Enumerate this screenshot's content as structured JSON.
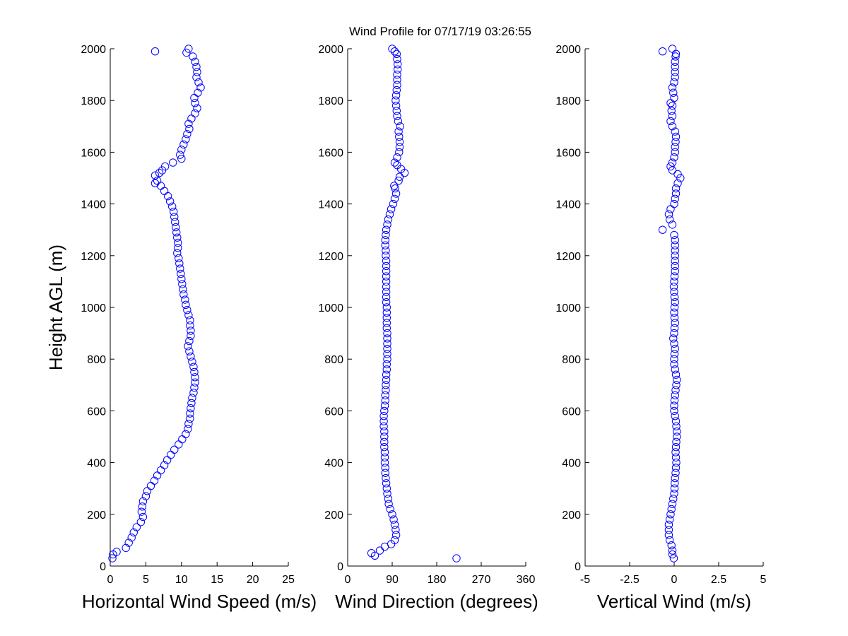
{
  "figure": {
    "title": "Wind Profile for  07/17/19 03:26:55",
    "marker_color": "#0000ff"
  },
  "chart_data": [
    {
      "type": "scatter",
      "title": "Wind Profile for  07/17/19 03:26:55",
      "xlabel": "Horizontal Wind Speed (m/s)",
      "ylabel": "Height AGL (m)",
      "xlim": [
        0,
        25
      ],
      "ylim": [
        0,
        2000
      ],
      "xticks": [
        "0",
        "5",
        "10",
        "15",
        "20",
        "25"
      ],
      "xtick_values": [
        0,
        5,
        10,
        15,
        20,
        25
      ],
      "yticks": [
        "0",
        "200",
        "400",
        "600",
        "800",
        "1000",
        "1200",
        "1400",
        "1600",
        "1800",
        "2000"
      ],
      "ytick_values": [
        0,
        200,
        400,
        600,
        800,
        1000,
        1200,
        1400,
        1600,
        1800,
        2000
      ],
      "grid": false,
      "points": [
        [
          0.3,
          30
        ],
        [
          0.4,
          45
        ],
        [
          0.9,
          55
        ],
        [
          2.2,
          70
        ],
        [
          2.6,
          90
        ],
        [
          3.0,
          110
        ],
        [
          3.3,
          130
        ],
        [
          3.7,
          150
        ],
        [
          4.3,
          170
        ],
        [
          4.6,
          190
        ],
        [
          4.4,
          210
        ],
        [
          4.5,
          230
        ],
        [
          4.6,
          250
        ],
        [
          5.0,
          270
        ],
        [
          5.2,
          290
        ],
        [
          5.7,
          310
        ],
        [
          6.2,
          330
        ],
        [
          6.6,
          350
        ],
        [
          7.1,
          370
        ],
        [
          7.6,
          390
        ],
        [
          8.0,
          410
        ],
        [
          8.5,
          430
        ],
        [
          9.0,
          450
        ],
        [
          9.6,
          470
        ],
        [
          10.1,
          490
        ],
        [
          10.6,
          510
        ],
        [
          10.9,
          530
        ],
        [
          11.0,
          550
        ],
        [
          11.2,
          570
        ],
        [
          11.2,
          590
        ],
        [
          11.3,
          610
        ],
        [
          11.4,
          630
        ],
        [
          11.5,
          650
        ],
        [
          11.7,
          670
        ],
        [
          11.8,
          690
        ],
        [
          11.9,
          710
        ],
        [
          11.9,
          730
        ],
        [
          11.8,
          750
        ],
        [
          11.7,
          770
        ],
        [
          11.5,
          790
        ],
        [
          11.3,
          810
        ],
        [
          11.1,
          830
        ],
        [
          10.9,
          850
        ],
        [
          11.1,
          870
        ],
        [
          11.3,
          890
        ],
        [
          11.3,
          910
        ],
        [
          11.2,
          930
        ],
        [
          11.2,
          950
        ],
        [
          11.0,
          970
        ],
        [
          10.8,
          990
        ],
        [
          10.6,
          1010
        ],
        [
          10.5,
          1030
        ],
        [
          10.3,
          1050
        ],
        [
          10.2,
          1070
        ],
        [
          10.1,
          1090
        ],
        [
          10.0,
          1110
        ],
        [
          9.9,
          1130
        ],
        [
          9.8,
          1150
        ],
        [
          9.7,
          1170
        ],
        [
          9.6,
          1190
        ],
        [
          9.4,
          1210
        ],
        [
          9.5,
          1230
        ],
        [
          9.5,
          1250
        ],
        [
          9.4,
          1270
        ],
        [
          9.3,
          1290
        ],
        [
          9.2,
          1310
        ],
        [
          9.1,
          1330
        ],
        [
          9.0,
          1350
        ],
        [
          8.9,
          1370
        ],
        [
          8.7,
          1390
        ],
        [
          8.4,
          1410
        ],
        [
          8.1,
          1430
        ],
        [
          7.6,
          1450
        ],
        [
          7.1,
          1470
        ],
        [
          6.3,
          1480
        ],
        [
          6.6,
          1490
        ],
        [
          6.3,
          1510
        ],
        [
          6.9,
          1520
        ],
        [
          7.3,
          1530
        ],
        [
          7.7,
          1545
        ],
        [
          8.8,
          1560
        ],
        [
          10.0,
          1575
        ],
        [
          9.8,
          1590
        ],
        [
          10.0,
          1610
        ],
        [
          10.3,
          1630
        ],
        [
          10.6,
          1650
        ],
        [
          10.8,
          1670
        ],
        [
          11.1,
          1690
        ],
        [
          11.0,
          1710
        ],
        [
          11.4,
          1730
        ],
        [
          11.9,
          1750
        ],
        [
          12.2,
          1770
        ],
        [
          11.9,
          1790
        ],
        [
          11.8,
          1810
        ],
        [
          12.3,
          1830
        ],
        [
          12.7,
          1850
        ],
        [
          12.4,
          1870
        ],
        [
          12.1,
          1890
        ],
        [
          12.2,
          1910
        ],
        [
          12.1,
          1930
        ],
        [
          11.9,
          1950
        ],
        [
          11.6,
          1970
        ],
        [
          10.7,
          1985
        ],
        [
          6.3,
          1990
        ],
        [
          11.0,
          2000
        ]
      ]
    },
    {
      "type": "scatter",
      "xlabel": "Wind Direction (degrees)",
      "ylabel": "",
      "xlim": [
        0,
        360
      ],
      "ylim": [
        0,
        2000
      ],
      "xticks": [
        "0",
        "90",
        "180",
        "270",
        "360"
      ],
      "xtick_values": [
        0,
        90,
        180,
        270,
        360
      ],
      "yticks": [
        "0",
        "200",
        "400",
        "600",
        "800",
        "1000",
        "1200",
        "1400",
        "1600",
        "1800",
        "2000"
      ],
      "ytick_values": [
        0,
        200,
        400,
        600,
        800,
        1000,
        1200,
        1400,
        1600,
        1800,
        2000
      ],
      "grid": false,
      "points": [
        [
          220,
          30
        ],
        [
          55,
          40
        ],
        [
          48,
          50
        ],
        [
          65,
          60
        ],
        [
          75,
          75
        ],
        [
          88,
          85
        ],
        [
          95,
          100
        ],
        [
          98,
          120
        ],
        [
          97,
          140
        ],
        [
          95,
          160
        ],
        [
          93,
          180
        ],
        [
          90,
          200
        ],
        [
          86,
          220
        ],
        [
          83,
          240
        ],
        [
          82,
          260
        ],
        [
          80,
          280
        ],
        [
          79,
          300
        ],
        [
          78,
          320
        ],
        [
          77,
          340
        ],
        [
          76,
          360
        ],
        [
          76,
          380
        ],
        [
          75,
          400
        ],
        [
          75,
          420
        ],
        [
          75,
          440
        ],
        [
          74,
          460
        ],
        [
          74,
          480
        ],
        [
          74,
          500
        ],
        [
          74,
          520
        ],
        [
          73,
          540
        ],
        [
          73,
          560
        ],
        [
          73,
          580
        ],
        [
          74,
          600
        ],
        [
          75,
          620
        ],
        [
          76,
          640
        ],
        [
          76,
          660
        ],
        [
          77,
          680
        ],
        [
          77,
          700
        ],
        [
          78,
          720
        ],
        [
          78,
          740
        ],
        [
          79,
          760
        ],
        [
          79,
          780
        ],
        [
          80,
          800
        ],
        [
          80,
          820
        ],
        [
          80,
          840
        ],
        [
          80,
          860
        ],
        [
          80,
          880
        ],
        [
          80,
          900
        ],
        [
          79,
          920
        ],
        [
          79,
          940
        ],
        [
          79,
          960
        ],
        [
          79,
          980
        ],
        [
          79,
          1000
        ],
        [
          78,
          1020
        ],
        [
          78,
          1040
        ],
        [
          78,
          1060
        ],
        [
          78,
          1080
        ],
        [
          78,
          1100
        ],
        [
          78,
          1120
        ],
        [
          78,
          1140
        ],
        [
          78,
          1160
        ],
        [
          78,
          1180
        ],
        [
          77,
          1200
        ],
        [
          77,
          1220
        ],
        [
          76,
          1240
        ],
        [
          76,
          1260
        ],
        [
          77,
          1280
        ],
        [
          78,
          1300
        ],
        [
          80,
          1320
        ],
        [
          82,
          1340
        ],
        [
          85,
          1360
        ],
        [
          88,
          1380
        ],
        [
          92,
          1400
        ],
        [
          95,
          1420
        ],
        [
          98,
          1440
        ],
        [
          96,
          1460
        ],
        [
          94,
          1470
        ],
        [
          103,
          1490
        ],
        [
          105,
          1505
        ],
        [
          115,
          1520
        ],
        [
          108,
          1535
        ],
        [
          100,
          1550
        ],
        [
          95,
          1560
        ],
        [
          100,
          1580
        ],
        [
          104,
          1600
        ],
        [
          105,
          1620
        ],
        [
          105,
          1640
        ],
        [
          104,
          1660
        ],
        [
          103,
          1680
        ],
        [
          106,
          1700
        ],
        [
          102,
          1720
        ],
        [
          100,
          1740
        ],
        [
          99,
          1760
        ],
        [
          98,
          1780
        ],
        [
          97,
          1800
        ],
        [
          98,
          1820
        ],
        [
          99,
          1840
        ],
        [
          100,
          1860
        ],
        [
          100,
          1880
        ],
        [
          100,
          1900
        ],
        [
          101,
          1920
        ],
        [
          101,
          1940
        ],
        [
          100,
          1960
        ],
        [
          99,
          1980
        ],
        [
          95,
          1990
        ],
        [
          90,
          2000
        ]
      ]
    },
    {
      "type": "scatter",
      "xlabel": "Vertical Wind (m/s)",
      "ylabel": "",
      "xlim": [
        -5,
        5
      ],
      "ylim": [
        0,
        2000
      ],
      "xticks": [
        "-5",
        "-2.5",
        "0",
        "2.5",
        "5"
      ],
      "xtick_values": [
        -5,
        -2.5,
        0,
        2.5,
        5
      ],
      "yticks": [
        "0",
        "200",
        "400",
        "600",
        "800",
        "1000",
        "1200",
        "1400",
        "1600",
        "1800",
        "2000"
      ],
      "ytick_values": [
        0,
        200,
        400,
        600,
        800,
        1000,
        1200,
        1400,
        1600,
        1800,
        2000
      ],
      "grid": false,
      "points": [
        [
          -0.02,
          30
        ],
        [
          -0.1,
          45
        ],
        [
          -0.1,
          60
        ],
        [
          -0.15,
          80
        ],
        [
          -0.25,
          100
        ],
        [
          -0.3,
          120
        ],
        [
          -0.3,
          140
        ],
        [
          -0.3,
          160
        ],
        [
          -0.25,
          180
        ],
        [
          -0.2,
          200
        ],
        [
          -0.15,
          220
        ],
        [
          -0.1,
          240
        ],
        [
          -0.05,
          260
        ],
        [
          0.0,
          280
        ],
        [
          0.02,
          300
        ],
        [
          0.03,
          320
        ],
        [
          0.05,
          340
        ],
        [
          0.08,
          360
        ],
        [
          0.1,
          380
        ],
        [
          0.12,
          400
        ],
        [
          0.1,
          420
        ],
        [
          0.08,
          440
        ],
        [
          0.1,
          460
        ],
        [
          0.12,
          480
        ],
        [
          0.15,
          500
        ],
        [
          0.15,
          520
        ],
        [
          0.12,
          540
        ],
        [
          0.1,
          560
        ],
        [
          0.05,
          580
        ],
        [
          0.0,
          600
        ],
        [
          0.0,
          620
        ],
        [
          0.02,
          640
        ],
        [
          0.05,
          660
        ],
        [
          0.08,
          680
        ],
        [
          0.12,
          700
        ],
        [
          0.15,
          720
        ],
        [
          0.1,
          740
        ],
        [
          0.05,
          760
        ],
        [
          0.0,
          780
        ],
        [
          0.0,
          800
        ],
        [
          0.02,
          820
        ],
        [
          0.05,
          840
        ],
        [
          0.0,
          860
        ],
        [
          -0.05,
          880
        ],
        [
          0.0,
          900
        ],
        [
          0.02,
          920
        ],
        [
          0.05,
          940
        ],
        [
          0.02,
          960
        ],
        [
          0.0,
          980
        ],
        [
          0.02,
          1000
        ],
        [
          0.05,
          1020
        ],
        [
          0.02,
          1040
        ],
        [
          0.0,
          1060
        ],
        [
          -0.02,
          1080
        ],
        [
          0.0,
          1100
        ],
        [
          0.02,
          1120
        ],
        [
          0.05,
          1140
        ],
        [
          0.05,
          1160
        ],
        [
          0.05,
          1180
        ],
        [
          0.05,
          1200
        ],
        [
          0.05,
          1220
        ],
        [
          0.05,
          1240
        ],
        [
          0.05,
          1260
        ],
        [
          0.0,
          1280
        ],
        [
          -0.65,
          1300
        ],
        [
          -0.1,
          1320
        ],
        [
          -0.25,
          1340
        ],
        [
          -0.3,
          1360
        ],
        [
          -0.2,
          1380
        ],
        [
          0.0,
          1400
        ],
        [
          0.05,
          1420
        ],
        [
          0.1,
          1440
        ],
        [
          0.1,
          1460
        ],
        [
          0.2,
          1480
        ],
        [
          0.35,
          1500
        ],
        [
          0.2,
          1515
        ],
        [
          -0.1,
          1530
        ],
        [
          -0.2,
          1545
        ],
        [
          -0.1,
          1560
        ],
        [
          0.0,
          1580
        ],
        [
          0.05,
          1600
        ],
        [
          0.05,
          1620
        ],
        [
          0.08,
          1640
        ],
        [
          0.1,
          1660
        ],
        [
          0.05,
          1680
        ],
        [
          -0.1,
          1700
        ],
        [
          -0.2,
          1720
        ],
        [
          -0.1,
          1740
        ],
        [
          -0.15,
          1760
        ],
        [
          -0.1,
          1780
        ],
        [
          -0.2,
          1790
        ],
        [
          0.0,
          1810
        ],
        [
          -0.05,
          1830
        ],
        [
          -0.1,
          1850
        ],
        [
          0.0,
          1870
        ],
        [
          0.05,
          1890
        ],
        [
          0.05,
          1910
        ],
        [
          0.05,
          1930
        ],
        [
          0.05,
          1950
        ],
        [
          0.08,
          1970
        ],
        [
          0.1,
          1980
        ],
        [
          -0.65,
          1990
        ],
        [
          -0.1,
          2000
        ]
      ]
    }
  ]
}
